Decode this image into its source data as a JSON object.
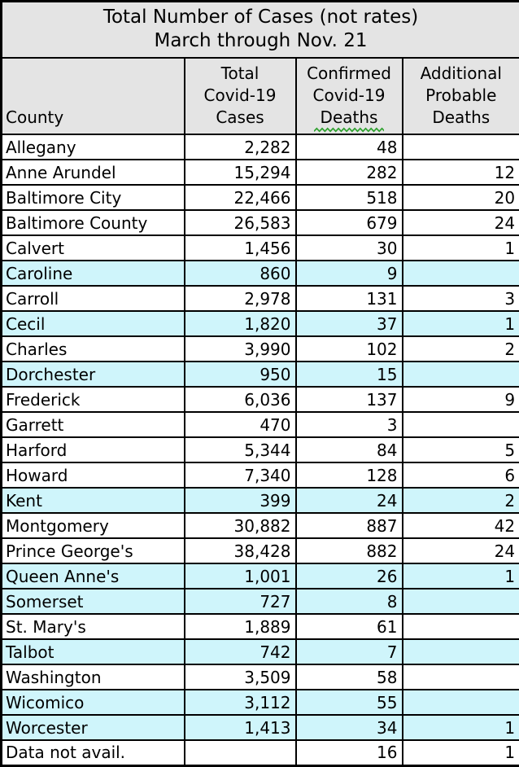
{
  "title": {
    "line1": "Total Number of Cases (not rates)",
    "line2": "March through Nov. 21"
  },
  "columns": [
    {
      "lines": [
        "County"
      ]
    },
    {
      "lines": [
        "Total",
        "Covid-19",
        "Cases"
      ]
    },
    {
      "lines": [
        "Confirmed",
        "Covid-19",
        "Deaths"
      ],
      "spellcheck_underline": "Deaths"
    },
    {
      "lines": [
        "Additional",
        "Probable",
        "Deaths"
      ]
    }
  ],
  "rows": [
    {
      "county": "Allegany",
      "cases": "2,282",
      "deaths": "48",
      "probable": "",
      "highlight": false
    },
    {
      "county": "Anne Arundel",
      "cases": "15,294",
      "deaths": "282",
      "probable": "12",
      "highlight": false
    },
    {
      "county": "Baltimore City",
      "cases": "22,466",
      "deaths": "518",
      "probable": "20",
      "highlight": false
    },
    {
      "county": "Baltimore County",
      "cases": "26,583",
      "deaths": "679",
      "probable": "24",
      "highlight": false
    },
    {
      "county": "Calvert",
      "cases": "1,456",
      "deaths": "30",
      "probable": "1",
      "highlight": false
    },
    {
      "county": "Caroline",
      "cases": "860",
      "deaths": "9",
      "probable": "",
      "highlight": true
    },
    {
      "county": "Carroll",
      "cases": "2,978",
      "deaths": "131",
      "probable": "3",
      "highlight": false
    },
    {
      "county": "Cecil",
      "cases": "1,820",
      "deaths": "37",
      "probable": "1",
      "highlight": true
    },
    {
      "county": "Charles",
      "cases": "3,990",
      "deaths": "102",
      "probable": "2",
      "highlight": false
    },
    {
      "county": "Dorchester",
      "cases": "950",
      "deaths": "15",
      "probable": "",
      "highlight": true
    },
    {
      "county": "Frederick",
      "cases": "6,036",
      "deaths": "137",
      "probable": "9",
      "highlight": false
    },
    {
      "county": "Garrett",
      "cases": "470",
      "deaths": "3",
      "probable": "",
      "highlight": false
    },
    {
      "county": "Harford",
      "cases": "5,344",
      "deaths": "84",
      "probable": "5",
      "highlight": false
    },
    {
      "county": "Howard",
      "cases": "7,340",
      "deaths": "128",
      "probable": "6",
      "highlight": false
    },
    {
      "county": "Kent",
      "cases": "399",
      "deaths": "24",
      "probable": "2",
      "highlight": true
    },
    {
      "county": "Montgomery",
      "cases": "30,882",
      "deaths": "887",
      "probable": "42",
      "highlight": false
    },
    {
      "county": "Prince George's",
      "cases": "38,428",
      "deaths": "882",
      "probable": "24",
      "highlight": false
    },
    {
      "county": "Queen Anne's",
      "cases": "1,001",
      "deaths": "26",
      "probable": "1",
      "highlight": true
    },
    {
      "county": "Somerset",
      "cases": "727",
      "deaths": "8",
      "probable": "",
      "highlight": true
    },
    {
      "county": "St. Mary's",
      "cases": "1,889",
      "deaths": "61",
      "probable": "",
      "highlight": false
    },
    {
      "county": "Talbot",
      "cases": "742",
      "deaths": "7",
      "probable": "",
      "highlight": true
    },
    {
      "county": "Washington",
      "cases": "3,509",
      "deaths": "58",
      "probable": "",
      "highlight": false
    },
    {
      "county": "Wicomico",
      "cases": "3,112",
      "deaths": "55",
      "probable": "",
      "highlight": true
    },
    {
      "county": "Worcester",
      "cases": "1,413",
      "deaths": "34",
      "probable": "1",
      "highlight": true
    },
    {
      "county": "Data not avail.",
      "cases": "",
      "deaths": "16",
      "probable": "1",
      "highlight": false
    }
  ],
  "colors": {
    "header_bg": "#E4E4E4",
    "highlight_bg": "#CFF5FB",
    "border": "#000000",
    "squiggle_green": "#2FA12F"
  }
}
